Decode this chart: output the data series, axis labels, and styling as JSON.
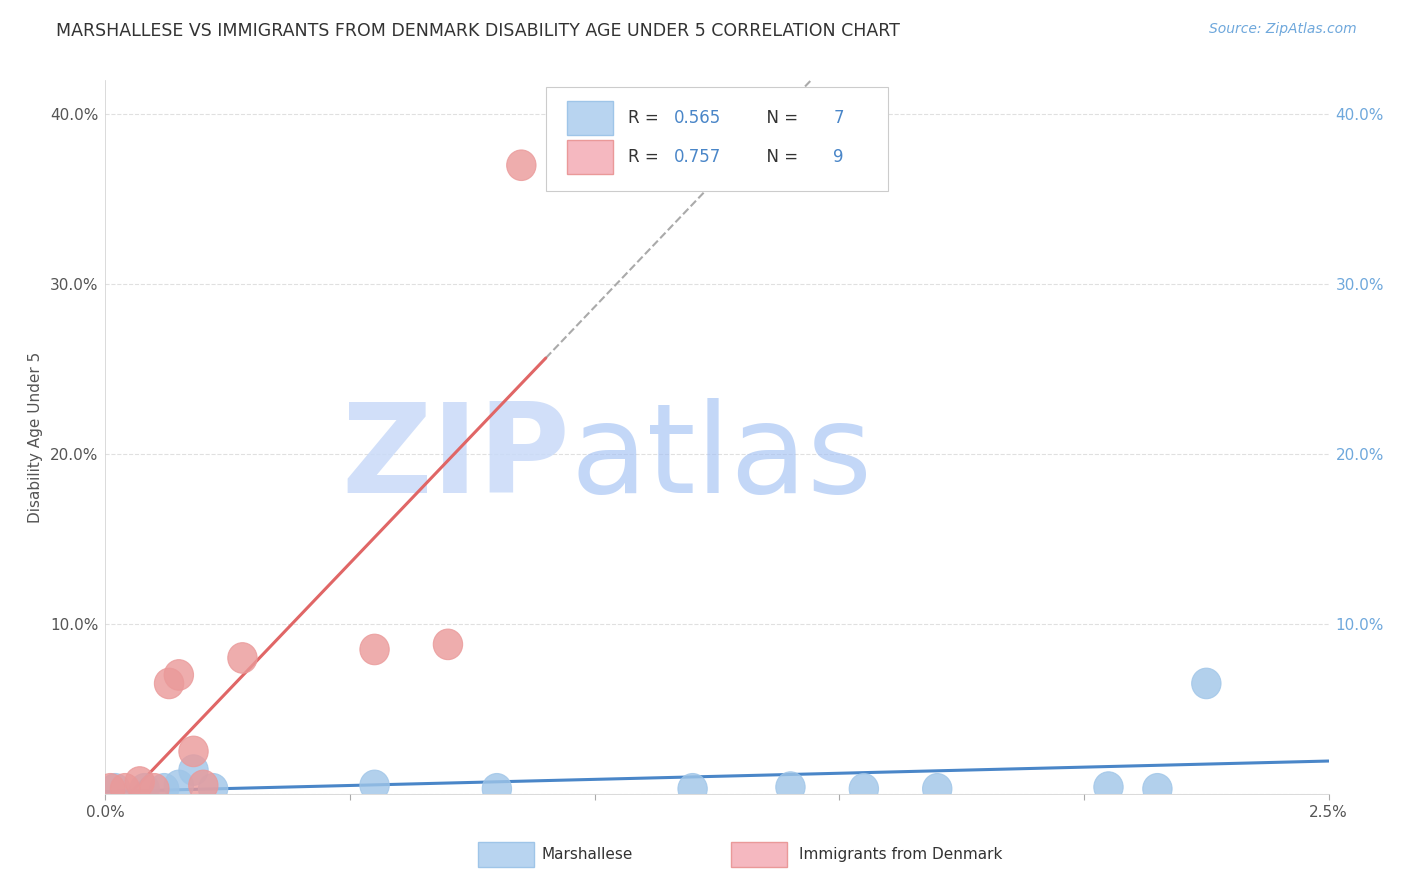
{
  "title": "MARSHALLESE VS IMMIGRANTS FROM DENMARK DISABILITY AGE UNDER 5 CORRELATION CHART",
  "source": "Source: ZipAtlas.com",
  "ylabel": "Disability Age Under 5",
  "xlim": [
    0.0,
    0.025
  ],
  "ylim": [
    0.0,
    0.42
  ],
  "marshallese_x": [
    0.0002,
    0.0008,
    0.0012,
    0.0015,
    0.0018,
    0.0022,
    0.0055,
    0.008,
    0.012,
    0.014,
    0.0155,
    0.017,
    0.0205,
    0.0215,
    0.0225
  ],
  "marshallese_y": [
    0.003,
    0.003,
    0.003,
    0.005,
    0.014,
    0.003,
    0.005,
    0.003,
    0.003,
    0.004,
    0.003,
    0.003,
    0.004,
    0.003,
    0.065
  ],
  "denmark_x": [
    0.0001,
    0.0004,
    0.0007,
    0.001,
    0.0013,
    0.0015,
    0.0018,
    0.002,
    0.0028,
    0.0055,
    0.007,
    0.0085
  ],
  "denmark_y": [
    0.003,
    0.003,
    0.007,
    0.003,
    0.065,
    0.07,
    0.025,
    0.005,
    0.08,
    0.085,
    0.088,
    0.37
  ],
  "marshallese_R": 0.565,
  "marshallese_N": 7,
  "denmark_R": 0.757,
  "denmark_N": 9,
  "marshallese_color": "#9fc5e8",
  "marshallese_edge_color": "#9fc5e8",
  "denmark_color": "#ea9999",
  "denmark_edge_color": "#ea9999",
  "marshallese_line_color": "#4a86c8",
  "denmark_line_color": "#e06666",
  "grid_color": "#e0e0e0",
  "background_color": "#ffffff",
  "legend_text_color": "#4a86c8",
  "legend_label_color": "#333333"
}
